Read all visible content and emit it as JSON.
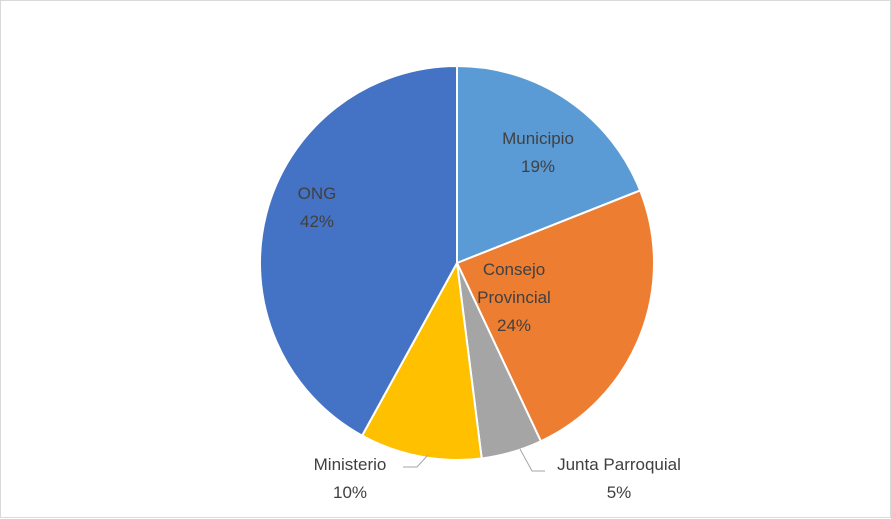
{
  "chart_data": {
    "type": "pie",
    "title": "",
    "legend": "none",
    "slices": [
      {
        "name": "Municipio",
        "value": 19,
        "label": "19%",
        "color": "#5b9bd5"
      },
      {
        "name": "Consejo Provincial",
        "value": 24,
        "label": "24%",
        "color": "#ed7d31"
      },
      {
        "name": "Junta Parroquial",
        "value": 5,
        "label": "5%",
        "color": "#a5a5a5"
      },
      {
        "name": "Ministerio",
        "value": 10,
        "label": "10%",
        "color": "#ffc000"
      },
      {
        "name": "ONG",
        "value": 42,
        "label": "42%",
        "color": "#4472c4"
      }
    ]
  }
}
